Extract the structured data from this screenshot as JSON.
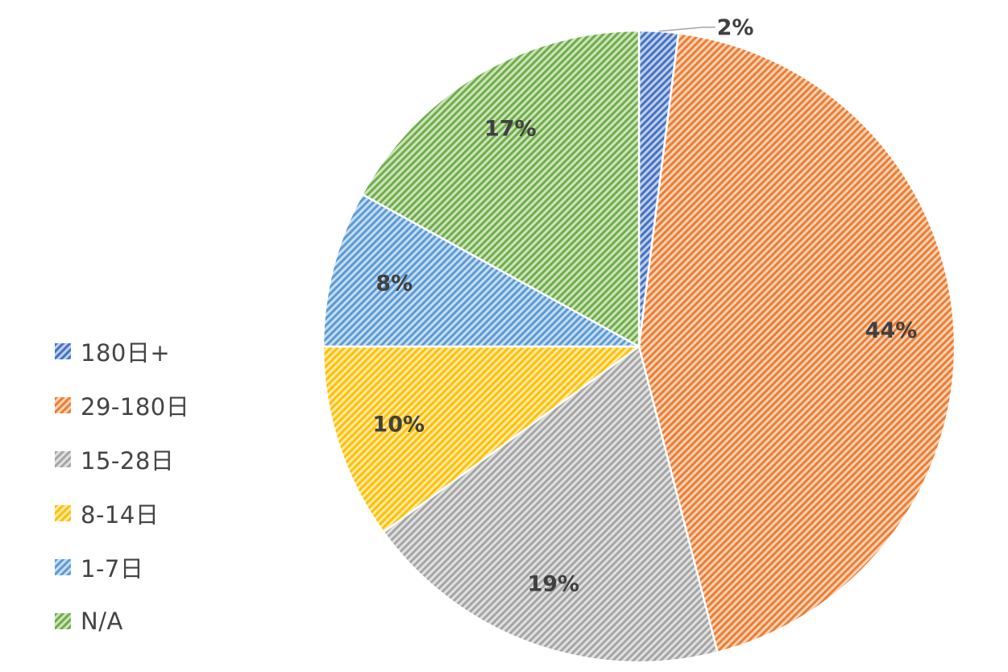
{
  "chart_data": {
    "type": "pie",
    "title": "",
    "legend_position": "left",
    "categories": [
      "180日+",
      "29-180日",
      "15-28日",
      "8-14日",
      "1-7日",
      "N/A"
    ],
    "values": [
      2,
      44,
      19,
      10,
      8,
      17
    ],
    "labels": [
      "2%",
      "44%",
      "19%",
      "10%",
      "8%",
      "17%"
    ],
    "colors": [
      "#4472C4",
      "#ED7D31",
      "#A5A5A5",
      "#FFC000",
      "#5B9BD5",
      "#70AD47"
    ]
  }
}
